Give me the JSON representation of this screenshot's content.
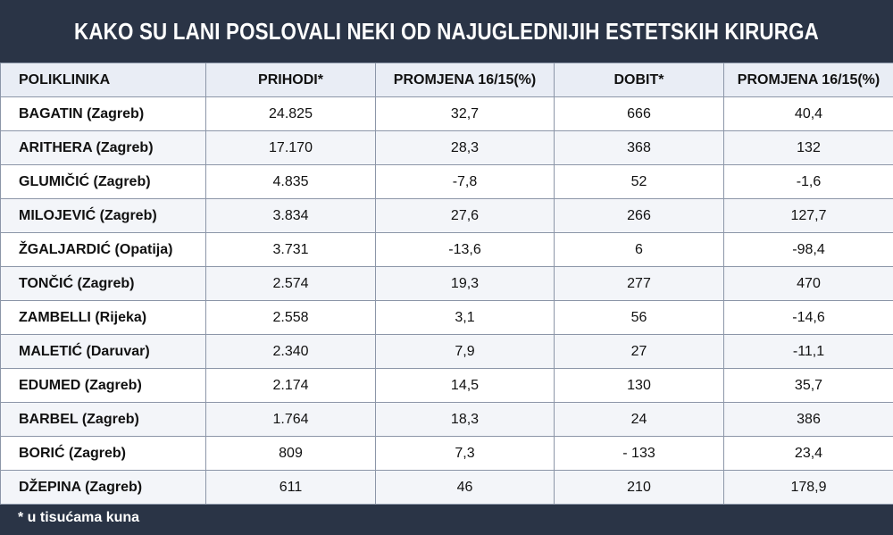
{
  "title": "KAKO SU LANI POSLOVALI NEKI OD NAJUGLEDNIJIH ESTETSKIH KIRURGA",
  "headers": [
    "POLIKLINIKA",
    "PRIHODI*",
    "PROMJENA 16/15(%)",
    "DOBIT*",
    "PROMJENA 16/15(%)"
  ],
  "rows": [
    [
      "BAGATIN (Zagreb)",
      "24.825",
      "32,7",
      "666",
      "40,4"
    ],
    [
      "ARITHERA (Zagreb)",
      "17.170",
      "28,3",
      "368",
      "132"
    ],
    [
      "GLUMIČIĆ (Zagreb)",
      "4.835",
      "-7,8",
      "52",
      "-1,6"
    ],
    [
      "MILOJEVIĆ (Zagreb)",
      "3.834",
      "27,6",
      "266",
      "127,7"
    ],
    [
      "ŽGALJARDIĆ (Opatija)",
      "3.731",
      "-13,6",
      "6",
      "-98,4"
    ],
    [
      "TONČIĆ (Zagreb)",
      "2.574",
      "19,3",
      "277",
      "470"
    ],
    [
      "ZAMBELLI  (Rijeka)",
      "2.558",
      "3,1",
      "56",
      "-14,6"
    ],
    [
      "MALETIĆ (Daruvar)",
      "2.340",
      "7,9",
      "27",
      "-11,1"
    ],
    [
      "EDUMED (Zagreb)",
      "2.174",
      "14,5",
      "130",
      "35,7"
    ],
    [
      "BARBEL (Zagreb)",
      "1.764",
      "18,3",
      "24",
      "386"
    ],
    [
      "BORIĆ (Zagreb)",
      "809",
      "7,3",
      "- 133",
      "23,4"
    ],
    [
      "DŽEPINA (Zagreb)",
      "611",
      "46",
      "210",
      "178,9"
    ]
  ],
  "footnote": "* u tisućama kuna"
}
